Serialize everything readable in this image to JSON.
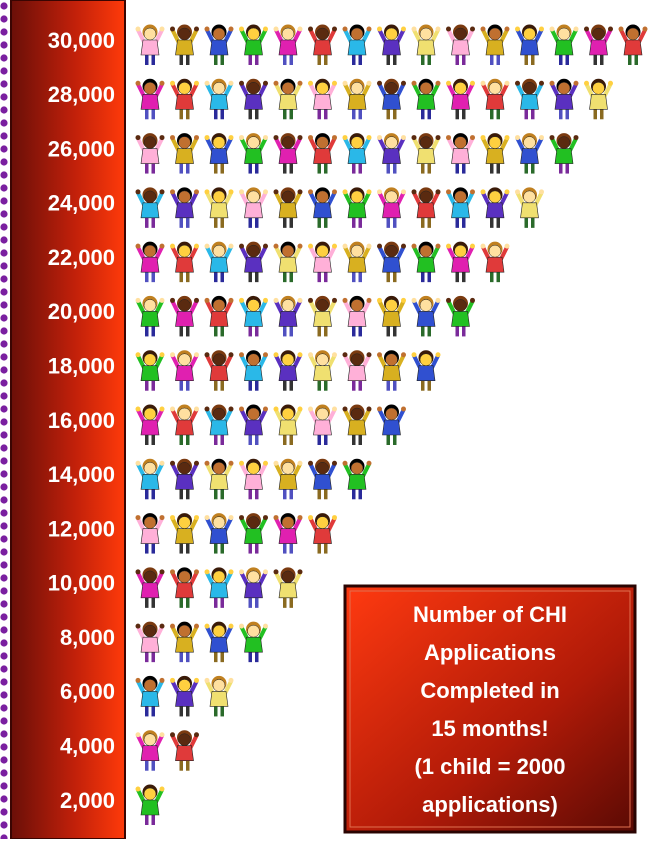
{
  "chart_data": {
    "type": "pictograph",
    "yticks": [
      {
        "value": 2000,
        "label": "2,000"
      },
      {
        "value": 4000,
        "label": "4,000"
      },
      {
        "value": 6000,
        "label": "6,000"
      },
      {
        "value": 8000,
        "label": "8,000"
      },
      {
        "value": 10000,
        "label": "10,000"
      },
      {
        "value": 12000,
        "label": "12,000"
      },
      {
        "value": 14000,
        "label": "14,000"
      },
      {
        "value": 16000,
        "label": "16,000"
      },
      {
        "value": 18000,
        "label": "18,000"
      },
      {
        "value": 20000,
        "label": "20,000"
      },
      {
        "value": 22000,
        "label": "22,000"
      },
      {
        "value": 24000,
        "label": "24,000"
      },
      {
        "value": 26000,
        "label": "26,000"
      },
      {
        "value": 28000,
        "label": "28,000"
      },
      {
        "value": 30000,
        "label": "30,000"
      }
    ],
    "values": [
      2000,
      4000,
      6000,
      8000,
      10000,
      12000,
      14000,
      16000,
      18000,
      20000,
      22000,
      24000,
      26000,
      28000,
      30000
    ],
    "per_icon": 2000,
    "note": [
      "Number of CHI",
      "Applications",
      "Completed in",
      "15 months!",
      "(1 child = 2000",
      "applications)"
    ]
  }
}
